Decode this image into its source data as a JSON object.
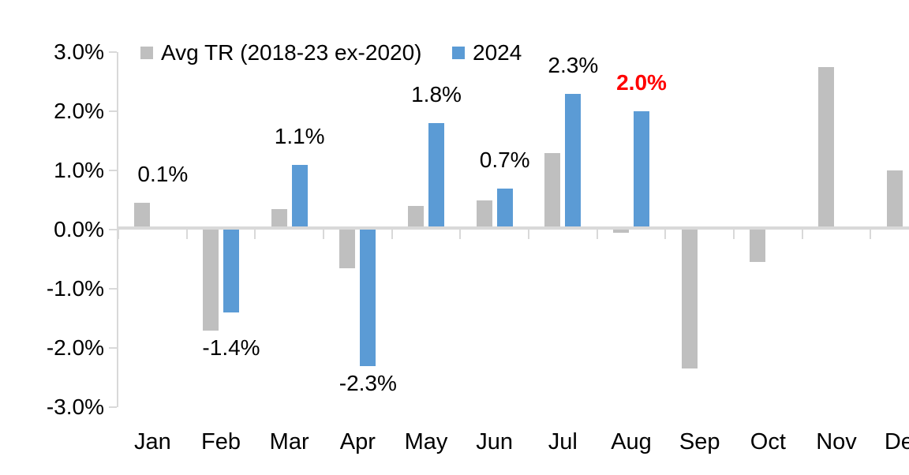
{
  "chart_data": {
    "type": "bar",
    "title": "",
    "xlabel": "",
    "ylabel": "",
    "categories": [
      "Jan",
      "Feb",
      "Mar",
      "Apr",
      "May",
      "Jun",
      "Jul",
      "Aug",
      "Sep",
      "Oct",
      "Nov",
      "Dec"
    ],
    "series": [
      {
        "name": "Avg TR (2018-23 ex-2020)",
        "color": "#bfbfbf",
        "values": [
          0.45,
          -1.7,
          0.35,
          -0.65,
          0.4,
          0.5,
          1.3,
          -0.05,
          -2.35,
          -0.55,
          2.75,
          1.0
        ]
      },
      {
        "name": "2024",
        "color": "#5b9bd5",
        "values": [
          0.05,
          -1.4,
          1.1,
          -2.3,
          1.8,
          0.7,
          2.3,
          2.0,
          null,
          null,
          null,
          null
        ]
      }
    ],
    "data_labels": [
      {
        "month": "Jan",
        "text": "0.1%",
        "color": "#000000",
        "bold": false
      },
      {
        "month": "Feb",
        "text": "-1.4%",
        "color": "#000000",
        "bold": false
      },
      {
        "month": "Mar",
        "text": "1.1%",
        "color": "#000000",
        "bold": false
      },
      {
        "month": "Apr",
        "text": "-2.3%",
        "color": "#000000",
        "bold": false
      },
      {
        "month": "May",
        "text": "1.8%",
        "color": "#000000",
        "bold": false
      },
      {
        "month": "Jun",
        "text": "0.7%",
        "color": "#000000",
        "bold": false
      },
      {
        "month": "Jul",
        "text": "2.3%",
        "color": "#000000",
        "bold": false
      },
      {
        "month": "Aug",
        "text": "2.0%",
        "color": "#ff0000",
        "bold": true
      }
    ],
    "y_axis": {
      "tick_labels": [
        "3.0%",
        "2.0%",
        "1.0%",
        "0.0%",
        "-1.0%",
        "-2.0%",
        "-3.0%"
      ],
      "tick_values": [
        3,
        2,
        1,
        0,
        -1,
        -2,
        -3
      ],
      "min": -3,
      "max": 3,
      "grid": false
    },
    "legend_position": "top",
    "colors": {
      "axis": "#d9d9d9",
      "text": "#000000",
      "highlight": "#ff0000",
      "background": "#ffffff"
    }
  }
}
